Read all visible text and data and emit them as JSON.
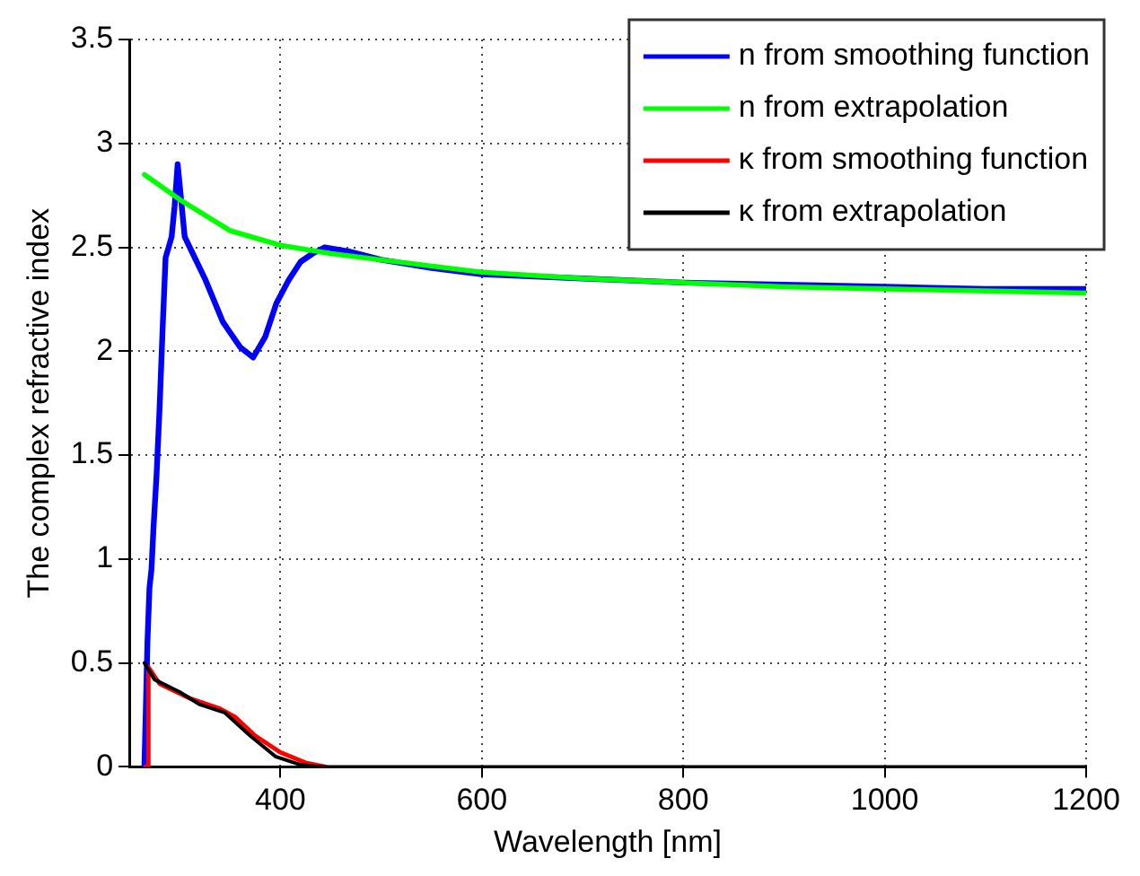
{
  "chart_data": {
    "type": "line",
    "xlabel": "Wavelength [nm]",
    "ylabel": "The complex refractive index",
    "xlim": [
      250,
      1200
    ],
    "xticks": [
      400,
      600,
      800,
      1000,
      1200
    ],
    "ylim": [
      0,
      3.5
    ],
    "yticks": [
      0,
      0.5,
      1,
      1.5,
      2,
      2.5,
      3,
      3.5
    ],
    "grid": true,
    "legend": "top right",
    "marker": "none",
    "line_style": "solid",
    "series": [
      {
        "name": "n from smoothing function",
        "color": "#0000ff",
        "x": [
          265,
          268,
          270,
          272,
          274,
          277,
          280,
          283,
          286,
          289,
          292,
          295,
          298,
          301,
          305,
          313,
          325,
          343,
          360,
          373,
          385,
          396,
          408,
          420,
          432,
          444,
          456,
          468,
          500,
          550,
          600,
          700,
          800,
          900,
          1000,
          1100,
          1200
        ],
        "values": [
          0,
          0.6,
          0.86,
          0.95,
          1.15,
          1.4,
          1.72,
          2.1,
          2.45,
          2.5,
          2.55,
          2.7,
          2.9,
          2.75,
          2.55,
          2.47,
          2.35,
          2.14,
          2.02,
          1.97,
          2.07,
          2.23,
          2.34,
          2.43,
          2.47,
          2.5,
          2.49,
          2.48,
          2.44,
          2.4,
          2.37,
          2.35,
          2.33,
          2.32,
          2.31,
          2.3,
          2.3
        ]
      },
      {
        "name": "n from extrapolation",
        "color": "#00ff00",
        "x": [
          265,
          300,
          350,
          400,
          450,
          500,
          600,
          700,
          800,
          900,
          1000,
          1100,
          1200
        ],
        "values": [
          2.85,
          2.73,
          2.58,
          2.51,
          2.47,
          2.44,
          2.38,
          2.35,
          2.33,
          2.31,
          2.3,
          2.29,
          2.28
        ]
      },
      {
        "name": "κ from smoothing function",
        "color": "#ff0000",
        "x": [
          266,
          268,
          269,
          280,
          310,
          340,
          355,
          375,
          400,
          425,
          445
        ],
        "values": [
          0,
          0,
          0.48,
          0.4,
          0.33,
          0.28,
          0.24,
          0.15,
          0.07,
          0.02,
          0
        ]
      },
      {
        "name": "κ from extrapolation",
        "color": "#000000",
        "x": [
          265,
          275,
          300,
          320,
          345,
          370,
          395,
          420,
          440,
          600,
          800,
          1000,
          1200
        ],
        "values": [
          0.5,
          0.42,
          0.36,
          0.3,
          0.26,
          0.15,
          0.05,
          0.01,
          0,
          0,
          0,
          0,
          0
        ]
      }
    ]
  }
}
